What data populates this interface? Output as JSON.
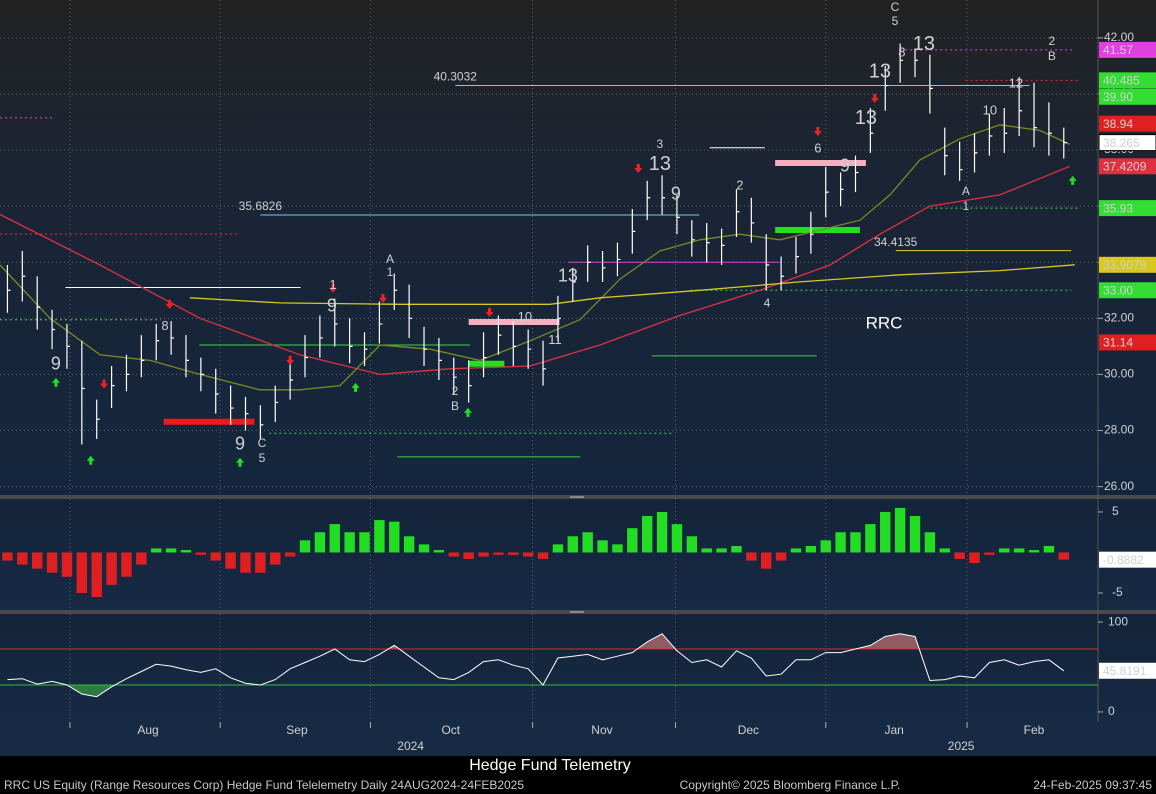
{
  "chart_data": [
    {
      "type": "ohlc",
      "title": "Hedge Fund Telemetry",
      "ticker_label": "RRC",
      "xlim": [
        -0.5,
        73.3
      ],
      "xticks": [
        {
          "value": 9.45,
          "label": "Aug"
        },
        {
          "value": 19.46,
          "label": "Sep"
        },
        {
          "value": 29.8,
          "label": "Oct"
        },
        {
          "value": 39.96,
          "label": "Nov"
        },
        {
          "value": 49.8,
          "label": "Dec"
        },
        {
          "value": 59.6,
          "label": "Jan"
        },
        {
          "value": 69.0,
          "label": "Feb"
        }
      ],
      "year_ticks": [
        {
          "value": 27.1,
          "label": "2024"
        },
        {
          "value": 64.1,
          "label": "2025"
        }
      ],
      "xgrid": [
        4.2,
        14.3,
        24.4,
        35.3,
        44.9,
        55.0,
        64.5
      ],
      "ylim": [
        25.7,
        43.35
      ],
      "yticks": [
        {
          "value": 26,
          "label": "26.00"
        },
        {
          "value": 28,
          "label": "28.00"
        },
        {
          "value": 30,
          "label": "30.00"
        },
        {
          "value": 32,
          "label": "32.00"
        },
        {
          "value": 34,
          "label": "34.00"
        },
        {
          "value": 36,
          "label": "36.00"
        },
        {
          "value": 38,
          "label": "38.00"
        },
        {
          "value": 40,
          "label": "40.00"
        },
        {
          "value": 42,
          "label": "42.00"
        }
      ],
      "grid": true,
      "bar_color": "#ffffff",
      "high": [
        33.9,
        34.4,
        33.5,
        32.3,
        31.8,
        31.2,
        29.1,
        30.3,
        30.7,
        31.4,
        31.8,
        31.9,
        31.4,
        30.6,
        30.2,
        29.6,
        29.2,
        28.9,
        29.6,
        30.5,
        31.4,
        32.1,
        32.7,
        32,
        31.5,
        32.6,
        33.6,
        33.2,
        31.7,
        31.3,
        30.6,
        30.5,
        31.5,
        32.1,
        31.9,
        31.6,
        31.2,
        32.8,
        33.8,
        34.6,
        34.4,
        34.7,
        35.9,
        36.9,
        37.1,
        36.4,
        35.5,
        35.4,
        35.2,
        36.6,
        36.3,
        35,
        34.2,
        34.9,
        35.8,
        37.4,
        37.2,
        37.8,
        39.5,
        41,
        41.8,
        41.6,
        41.4,
        38.8,
        38.3,
        38.6,
        39.3,
        39.5,
        40.6,
        40.4,
        39.7,
        38.8
      ],
      "low": [
        32.2,
        32.6,
        31.6,
        30.9,
        30.2,
        27.5,
        27.7,
        28.8,
        29.4,
        29.9,
        30.5,
        30.7,
        29.9,
        29.4,
        28.6,
        28.2,
        28,
        27.7,
        28.3,
        29.1,
        29.9,
        30.6,
        31,
        30.4,
        30.3,
        31.1,
        32.3,
        31.3,
        30.3,
        29.8,
        29.3,
        29,
        29.9,
        30.7,
        30.3,
        30.2,
        29.6,
        31.2,
        32.6,
        33.3,
        33.3,
        33.5,
        34.3,
        35.5,
        35.7,
        35,
        34.2,
        34,
        33.9,
        34.9,
        34.7,
        33,
        33,
        33.6,
        34.3,
        35.6,
        36,
        36.5,
        37.9,
        39.4,
        40.4,
        40.6,
        39.3,
        37.1,
        36.9,
        37.2,
        37.8,
        37.9,
        38.5,
        38.1,
        37.8,
        37.7
      ],
      "close": [
        33,
        33.5,
        32.4,
        31.6,
        31,
        29.5,
        28.4,
        29.6,
        30,
        30.5,
        31.2,
        31.3,
        30.5,
        30,
        29.3,
        28.8,
        28.6,
        28.2,
        29,
        29.8,
        30.6,
        31.3,
        31.8,
        31,
        30.9,
        31.8,
        33,
        32,
        30.9,
        30.5,
        29.9,
        29.6,
        30.6,
        31.4,
        31,
        30.9,
        30.2,
        32,
        33.3,
        34,
        33.8,
        34.1,
        35.1,
        36.3,
        36.3,
        35.6,
        34.8,
        34.7,
        34.6,
        35.8,
        35.4,
        33.9,
        33.5,
        34.2,
        35,
        36.5,
        36.6,
        37.2,
        38.6,
        40.3,
        41.2,
        41.2,
        40.2,
        37.8,
        37.3,
        37.9,
        38.5,
        38.6,
        39.4,
        38.8,
        38.6,
        38.265
      ],
      "last_color": "#ffffff",
      "lines": [
        {
          "color": "#e03040",
          "x": [
            -0.5,
            6.22,
            12.94,
            19.66,
            25.04,
            29.74,
            35.12,
            39.82,
            45.2,
            50.58,
            55.28,
            58.64,
            62,
            66.7,
            71.4
          ],
          "values": [
            35.7,
            33.9,
            32,
            30.7,
            30,
            30.2,
            30.3,
            31.05,
            32.1,
            33,
            33.9,
            35,
            36,
            36.4,
            37.4209
          ]
        },
        {
          "color": "#7a8a20",
          "x": [
            -0.5,
            2.86,
            6.22,
            9.58,
            12.94,
            16.97,
            19.66,
            22.35,
            25.04,
            28.4,
            31.76,
            35.12,
            38.48,
            41.17,
            43.85,
            46.54,
            49.23,
            51.92,
            54.61,
            57.3,
            59.31,
            61.33,
            64.02,
            66.7,
            69.39,
            71.4
          ],
          "values": [
            33.9,
            32,
            30.7,
            30.5,
            30,
            29.45,
            29.45,
            29.6,
            31.05,
            30.9,
            30.5,
            31.2,
            31.95,
            33.4,
            34.4,
            34.8,
            35,
            34.8,
            35.15,
            35.5,
            36.4,
            37.65,
            38.4,
            38.9,
            38.7,
            38.2
          ]
        },
        {
          "color": "#d8c820",
          "x": [
            12.27,
            18.32,
            26.38,
            36.46,
            39.82,
            46.54,
            53.26,
            59.98,
            66.7,
            71.74
          ],
          "values": [
            32.73,
            32.55,
            32.5,
            32.5,
            32.73,
            33,
            33.3,
            33.55,
            33.7,
            33.9079
          ]
        }
      ],
      "level_labels": [
        {
          "value": 40.3032,
          "from": 30.1,
          "to": 68.7,
          "color": "#60d8e0"
        },
        {
          "value": 35.6826,
          "from": 17,
          "to": 46.5,
          "color": "#60d8e0"
        },
        {
          "value": 34.4135,
          "from": 59.7,
          "to": 71.5,
          "color": "#e0d020"
        }
      ],
      "levels": [
        {
          "value": 41.57,
          "from": 60.0,
          "to": 71.7,
          "color": "#e040e0",
          "style": "dotted"
        },
        {
          "value": 40.485,
          "from": 64.4,
          "to": 72.1,
          "color": "#e03030",
          "style": "dotted"
        },
        {
          "value": 35.0,
          "from": -0.5,
          "to": 15.6,
          "color": "#e03030",
          "style": "dotted"
        },
        {
          "value": 39.15,
          "from": -0.5,
          "to": 3.2,
          "color": "#e040e0",
          "style": "dotted"
        },
        {
          "value": 35.93,
          "from": 61.7,
          "to": 72.1,
          "color": "#40d040",
          "style": "dotted"
        },
        {
          "value": 33.0,
          "from": 45.9,
          "to": 71.5,
          "color": "#40d040",
          "style": "dotted"
        },
        {
          "value": 33.1,
          "from": 3.9,
          "to": 19.7,
          "color": "#ffffff",
          "style": "solid"
        },
        {
          "value": 31.95,
          "from": -0.5,
          "to": 10.3,
          "color": "#40d040",
          "style": "dotted"
        },
        {
          "value": 27.06,
          "from": 26.2,
          "to": 38.5,
          "color": "#40d040",
          "style": "solid"
        },
        {
          "value": 30.66,
          "from": 43.3,
          "to": 54.4,
          "color": "#40d040",
          "style": "solid"
        },
        {
          "value": 27.9,
          "from": 17.6,
          "to": 44.7,
          "color": "#40d040",
          "style": "dotted"
        },
        {
          "value": 31.05,
          "from": 12.9,
          "to": 31.1,
          "color": "#40d040",
          "style": "solid"
        },
        {
          "value": 34.0,
          "from": 37.7,
          "to": 51.9,
          "color": "#e040e0",
          "style": "solid"
        },
        {
          "value": 38.08,
          "from": 47.2,
          "to": 50.9,
          "color": "#ffffff",
          "style": "solid"
        },
        {
          "value": 31.87,
          "from": 31,
          "to": 37.1,
          "color": "#f4b0c0",
          "style": "thick"
        },
        {
          "value": 37.54,
          "from": 51.6,
          "to": 57.7,
          "color": "#f4b0c0",
          "style": "thick"
        },
        {
          "value": 35.15,
          "from": 51.6,
          "to": 57.3,
          "color": "#20e020",
          "style": "thick"
        },
        {
          "value": 28.31,
          "from": 10.5,
          "to": 16.6,
          "color": "#f01818",
          "style": "thick"
        },
        {
          "value": 30.38,
          "from": 31,
          "to": 33.4,
          "color": "#20e020",
          "style": "thick"
        }
      ],
      "price_labels": [
        {
          "value": 41.57,
          "color": "#e040e0",
          "text_color": "#ffffff"
        },
        {
          "value": 40.485,
          "color": "#33dd33",
          "text_color": "#000000"
        },
        {
          "value": 39.9,
          "label": "39.90",
          "color": "#33dd33",
          "text_color": "#000000"
        },
        {
          "value": 38.94,
          "color": "#e02020",
          "text_color": "#ffffff"
        },
        {
          "value": 35.93,
          "color": "#33dd33",
          "text_color": "#000000"
        },
        {
          "value": 33.0,
          "label": "33.00",
          "color": "#33dd33",
          "text_color": "#000000"
        },
        {
          "value": 31.14,
          "color": "#e02020",
          "text_color": "#ffffff"
        }
      ],
      "counts": [
        {
          "x": 3.26,
          "y": 30.34,
          "label": "9",
          "color": "#40e040",
          "size": 18
        },
        {
          "x": 15.63,
          "y": 27.49,
          "label": "9",
          "color": "#40e040",
          "size": 18
        },
        {
          "x": 21.81,
          "y": 32.41,
          "label": "9",
          "color": "#40e040",
          "size": 18
        },
        {
          "x": 44.93,
          "y": 36.4,
          "label": "9",
          "color": "#40e040",
          "size": 18
        },
        {
          "x": 56.29,
          "y": 37.4,
          "label": "9",
          "color": "#40e040",
          "size": 18
        },
        {
          "x": 37.67,
          "y": 33.48,
          "label": "13",
          "color": "#e03030",
          "size": 18
        },
        {
          "x": 43.85,
          "y": 37.47,
          "label": "13",
          "color": "#e040d0",
          "size": 20
        },
        {
          "x": 57.7,
          "y": 39.11,
          "label": "13",
          "color": "#e040d0",
          "size": 20
        },
        {
          "x": 58.64,
          "y": 40.78,
          "label": "13",
          "color": "#e040d0",
          "size": 20
        },
        {
          "x": 61.6,
          "y": 41.75,
          "label": "13",
          "color": "#e040d0",
          "size": 20
        },
        {
          "x": 59.65,
          "y": 43.07,
          "label": "C",
          "color": "#e0d020",
          "size": 12
        },
        {
          "x": 59.65,
          "y": 42.57,
          "label": "5",
          "color": "#60d8e0",
          "size": 12
        },
        {
          "x": 25.71,
          "y": 34.08,
          "label": "A",
          "color": "#e0d020",
          "size": 12
        },
        {
          "x": 25.71,
          "y": 33.62,
          "label": "1",
          "color": "#60d8e0",
          "size": 12
        },
        {
          "x": 30.08,
          "y": 29.38,
          "label": "2",
          "color": "#60d8e0",
          "size": 12
        },
        {
          "x": 30.08,
          "y": 28.85,
          "label": "B",
          "color": "#e0d020",
          "size": 12
        },
        {
          "x": 17.11,
          "y": 27.53,
          "label": "C",
          "color": "#60d8e0",
          "size": 12
        },
        {
          "x": 17.11,
          "y": 26.99,
          "label": "5",
          "color": "#e0d020",
          "size": 12
        },
        {
          "x": 64.42,
          "y": 36.51,
          "label": "A",
          "color": "#60d8e0",
          "size": 12
        },
        {
          "x": 64.42,
          "y": 35.97,
          "label": "1",
          "color": "#e0d020",
          "size": 12
        },
        {
          "x": 70.2,
          "y": 41.85,
          "label": "2",
          "color": "#e0d020",
          "size": 12
        },
        {
          "x": 70.2,
          "y": 41.32,
          "label": "B",
          "color": "#60d8e0",
          "size": 12
        },
        {
          "x": 51.05,
          "y": 32.52,
          "label": "4",
          "color": "#60d8e0",
          "size": 12
        },
        {
          "x": 43.85,
          "y": 38.18,
          "label": "3",
          "color": "#60d8e0",
          "size": 12
        },
        {
          "x": 66.03,
          "y": 39.39,
          "label": "10",
          "color": "#e03030",
          "size": 13
        },
        {
          "x": 67.78,
          "y": 40.36,
          "label": "12",
          "color": "#e03030",
          "size": 13
        },
        {
          "x": 34.78,
          "y": 32.02,
          "label": "10",
          "color": "#e03030",
          "size": 13
        },
        {
          "x": 36.8,
          "y": 31.2,
          "label": "11",
          "color": "#e03030",
          "size": 13
        },
        {
          "x": 10.59,
          "y": 31.7,
          "label": "8",
          "color": "#40e040",
          "size": 13
        },
        {
          "x": 54.47,
          "y": 38.04,
          "label": "6",
          "color": "#e03030",
          "size": 13
        },
        {
          "x": 49.23,
          "y": 36.72,
          "label": "2",
          "color": "#e03030",
          "size": 13
        },
        {
          "x": 60.12,
          "y": 41.46,
          "label": "8",
          "color": "#e03030",
          "size": 13
        },
        {
          "x": 21.88,
          "y": 33.16,
          "label": "1",
          "color": "#e03030",
          "size": 13
        }
      ],
      "arrows": [
        {
          "x": 5.6,
          "y": 26.92,
          "dir": "up"
        },
        {
          "x": 15.63,
          "y": 26.85,
          "dir": "up"
        },
        {
          "x": 30.95,
          "y": 28.63,
          "dir": "up"
        },
        {
          "x": 23.4,
          "y": 29.52,
          "dir": "up"
        },
        {
          "x": 71.6,
          "y": 36.9,
          "dir": "up"
        },
        {
          "x": 3.26,
          "y": 29.7,
          "dir": "up"
        },
        {
          "x": 6.49,
          "y": 29.67,
          "dir": "down"
        },
        {
          "x": 21.88,
          "y": 33.09,
          "dir": "down"
        },
        {
          "x": 10.9,
          "y": 32.52,
          "dir": "down"
        },
        {
          "x": 32.4,
          "y": 32.23,
          "dir": "down"
        },
        {
          "x": 42.4,
          "y": 37.36,
          "dir": "down"
        },
        {
          "x": 54.47,
          "y": 38.68,
          "dir": "down"
        },
        {
          "x": 58.3,
          "y": 39.86,
          "dir": "down"
        },
        {
          "x": 19.0,
          "y": 30.52,
          "dir": "down"
        },
        {
          "x": 25.24,
          "y": 32.73,
          "dir": "down"
        }
      ]
    },
    {
      "type": "histogram",
      "values": [
        -1,
        -1.5,
        -2,
        -2.5,
        -3,
        -5,
        -5.5,
        -4,
        -3,
        -1.5,
        0.5,
        0.5,
        0.3,
        -0.3,
        -1,
        -2,
        -2.5,
        -2.5,
        -1.5,
        -0.5,
        1.5,
        2.5,
        3.5,
        2.5,
        2.5,
        4,
        3.8,
        2,
        1,
        0.3,
        -0.5,
        -0.8,
        -0.5,
        -0.3,
        -0.3,
        -0.5,
        -0.8,
        1,
        2,
        2.5,
        1.5,
        1,
        3,
        4.5,
        5,
        3.5,
        2,
        0.5,
        0.5,
        0.8,
        -1,
        -2,
        -1,
        0.5,
        0.8,
        1.5,
        2.5,
        2.5,
        3.5,
        5,
        5.5,
        4.5,
        2.5,
        0.5,
        -0.8,
        -1.3,
        -0.3,
        0.5,
        0.5,
        0.3,
        0.8,
        -0.8882
      ],
      "ylim": [
        -7.1,
        6.6
      ],
      "yticks": [
        -5,
        5
      ],
      "pos_color": "#22dd22",
      "neg_color": "#e02020"
    },
    {
      "type": "line",
      "values": [
        36,
        37,
        31,
        34,
        30,
        20,
        17,
        28,
        37,
        45,
        53,
        51,
        47,
        44,
        48,
        38,
        32,
        30,
        36,
        48,
        55,
        62,
        70,
        58,
        56,
        64,
        74,
        62,
        50,
        38,
        36,
        44,
        56,
        58,
        52,
        48,
        30,
        60,
        62,
        64,
        58,
        62,
        66,
        78,
        87,
        68,
        55,
        58,
        50,
        68,
        60,
        40,
        42,
        58,
        58,
        66,
        66,
        70,
        74,
        84,
        87,
        84,
        35,
        36,
        40,
        38,
        55,
        58,
        52,
        56,
        58,
        45.8191
      ],
      "ylim": [
        -11.2,
        109
      ],
      "yticks": [
        0,
        100
      ],
      "color": "#ffffff",
      "upper": 70,
      "lower": 30,
      "upper_color": "#d03030",
      "lower_color": "#30c030"
    }
  ],
  "footer": {
    "left": "RRC US Equity (Range Resources Corp) Hedge Fund Telelemetry  Daily 24AUG2024-24FEB2025",
    "center": "Copyright© 2025 Bloomberg Finance L.P.",
    "right": "24-Feb-2025 09:37:45"
  }
}
